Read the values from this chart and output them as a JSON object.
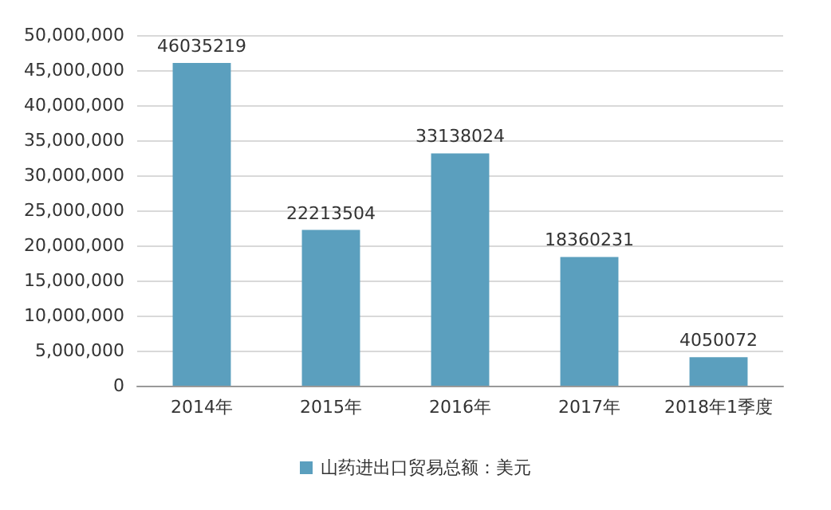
{
  "chart_data": {
    "type": "bar",
    "categories": [
      "2014年",
      "2015年",
      "2016年",
      "2017年",
      "2018年1季度"
    ],
    "series": [
      {
        "name": "山药进出口贸易总额：美元",
        "color": "#5b9fbe",
        "values": [
          46035219,
          22213504,
          33138024,
          18360231,
          4050072
        ]
      }
    ],
    "ylim": [
      0,
      50000000
    ],
    "yticks": [
      0,
      {
        "value": 5000000,
        "label": "5,000,000"
      },
      {
        "value": 10000000,
        "label": "10,000,000"
      },
      {
        "value": 15000000,
        "label": "15,000,000"
      },
      {
        "value": 20000000,
        "label": "20,000,000"
      },
      {
        "value": 25000000,
        "label": "25,000,000"
      },
      {
        "value": 30000000,
        "label": "30,000,000"
      },
      {
        "value": 35000000,
        "label": "35,000,000"
      },
      {
        "value": 40000000,
        "label": "40,000,000"
      },
      {
        "value": 45000000,
        "label": "45,000,000"
      },
      {
        "value": 50000000,
        "label": "50,000,000"
      }
    ],
    "grid": "y",
    "legend": "bottom",
    "data_labels": true
  }
}
